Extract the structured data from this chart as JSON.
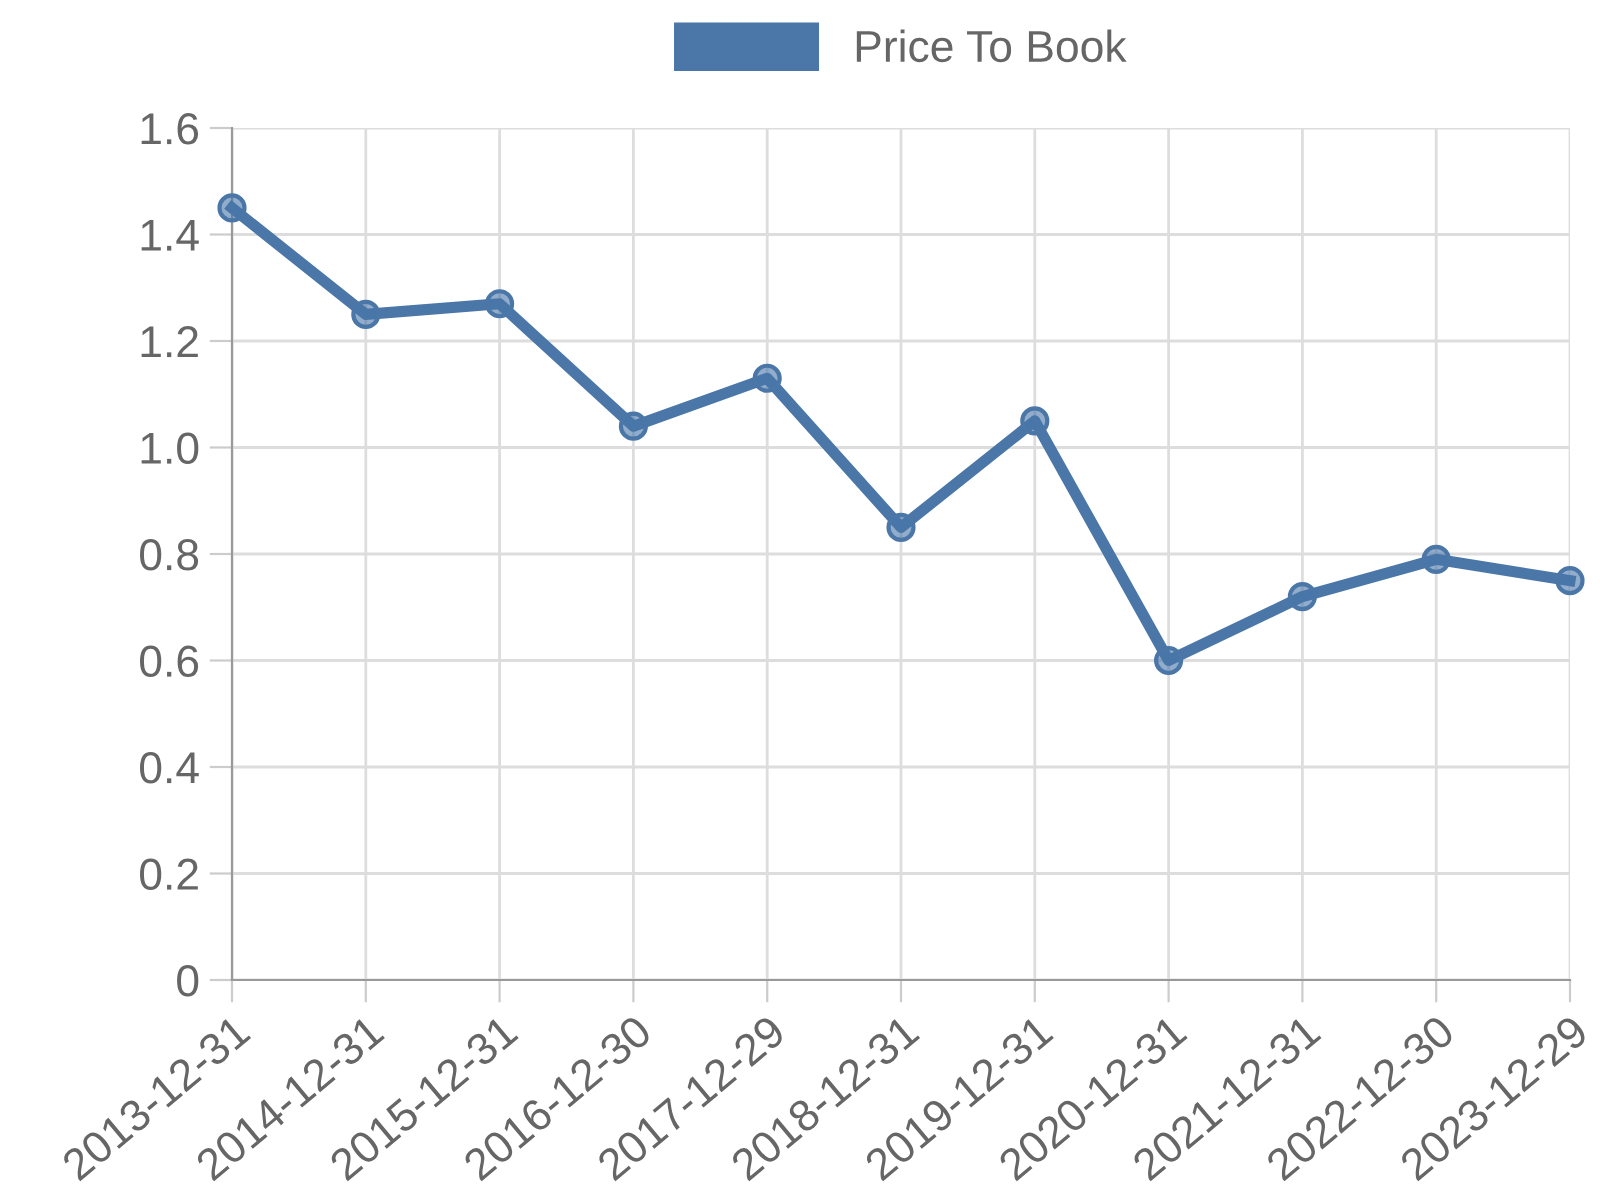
{
  "chart_data": {
    "type": "line",
    "categories": [
      "2013-12-31",
      "2014-12-31",
      "2015-12-31",
      "2016-12-30",
      "2017-12-29",
      "2018-12-31",
      "2019-12-31",
      "2020-12-31",
      "2021-12-31",
      "2022-12-30",
      "2023-12-29"
    ],
    "series": [
      {
        "name": "Price To Book",
        "color": "#4a76a8",
        "values": [
          1.45,
          1.25,
          1.27,
          1.04,
          1.13,
          0.85,
          1.05,
          0.6,
          0.72,
          0.79,
          0.75
        ]
      }
    ],
    "ylim": [
      0,
      1.6
    ],
    "yticks": [
      0,
      0.2,
      0.4,
      0.6,
      0.8,
      {
        "value": 1,
        "label": "1.0"
      },
      1.2,
      1.4,
      1.6
    ],
    "grid": true,
    "legend": "top",
    "marker": "circle",
    "line_style": "solid"
  }
}
